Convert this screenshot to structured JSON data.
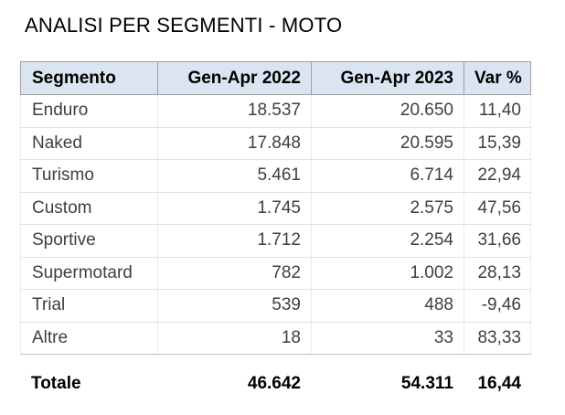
{
  "title": "ANALISI PER SEGMENTI - MOTO",
  "table": {
    "header": [
      "Segmento",
      "Gen-Apr 2022",
      "Gen-Apr 2023",
      "Var %"
    ],
    "rows": [
      [
        "Enduro",
        "18.537",
        "20.650",
        "11,40"
      ],
      [
        "Naked",
        "17.848",
        "20.595",
        "15,39"
      ],
      [
        "Turismo",
        "5.461",
        "6.714",
        "22,94"
      ],
      [
        "Custom",
        "1.745",
        "2.575",
        "47,56"
      ],
      [
        "Sportive",
        "1.712",
        "2.254",
        "31,66"
      ],
      [
        "Supermotard",
        "782",
        "1.002",
        "28,13"
      ],
      [
        "Trial",
        "539",
        "488",
        "-9,46"
      ],
      [
        "Altre",
        "18",
        "33",
        "83,33"
      ]
    ],
    "total": [
      "Totale",
      "46.642",
      "54.311",
      "16,44"
    ]
  },
  "colors": {
    "header_bg": "#dbe5f1",
    "header_border": "#9f9f9f",
    "header_text": "#000000",
    "body_text": "#3f3f3f",
    "grid_line": "#dfe1e5",
    "table_bottom_border": "#c2c2c2",
    "title_text": "#000000",
    "background": "#ffffff"
  },
  "chart_data": {
    "type": "table",
    "title": "ANALISI PER SEGMENTI - MOTO",
    "categories": [
      "Enduro",
      "Naked",
      "Turismo",
      "Custom",
      "Sportive",
      "Supermotard",
      "Trial",
      "Altre"
    ],
    "series": [
      {
        "name": "Gen-Apr 2022",
        "values": [
          18537,
          17848,
          5461,
          1745,
          1712,
          782,
          539,
          18
        ],
        "total": 46642
      },
      {
        "name": "Gen-Apr 2023",
        "values": [
          20650,
          20595,
          6714,
          2575,
          2254,
          1002,
          488,
          33
        ],
        "total": 54311
      },
      {
        "name": "Var %",
        "values": [
          11.4,
          15.39,
          22.94,
          47.56,
          31.66,
          28.13,
          -9.46,
          83.33
        ],
        "total": 16.44
      }
    ],
    "number_format": "Italian locale: '.' thousands separator, ',' decimal separator"
  }
}
